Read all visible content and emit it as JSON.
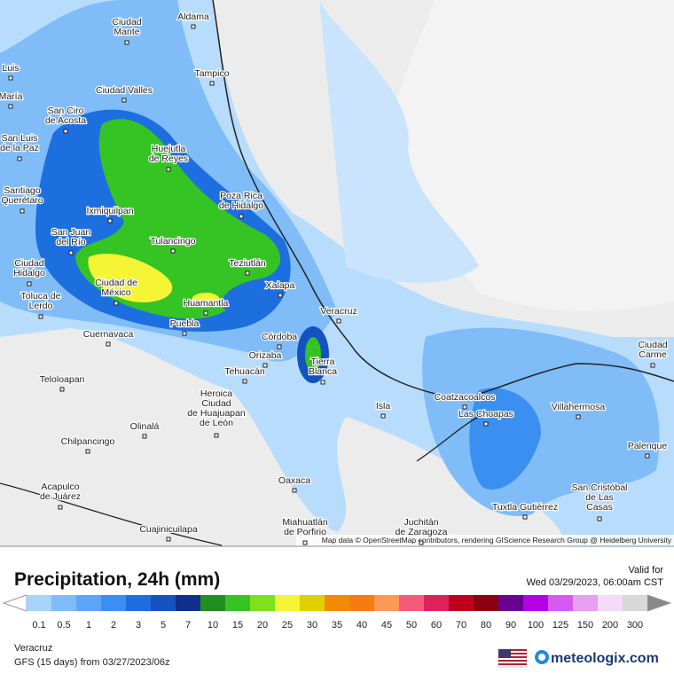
{
  "map": {
    "attribution": "Map data © OpenStreetMap contributors, rendering GIScience Research Group @ Heidelberg University",
    "cities": [
      [
        "Aldama"
      ],
      [
        "Ciudad",
        "Mante"
      ],
      [
        "Tampico"
      ],
      [
        "Ciudad Valles"
      ],
      [
        "Luis"
      ],
      [
        "María"
      ],
      [
        "San Ciro",
        "de Acosta"
      ],
      [
        "San Luis",
        "de la Paz"
      ],
      [
        "Huejutla",
        "de Reyes"
      ],
      [
        "Poza Rica",
        "de Hidalgo"
      ],
      [
        "Santiago",
        "Querétaro"
      ],
      [
        "Ixmiquilpan"
      ],
      [
        "San Juan",
        "del Río"
      ],
      [
        "Tulancingo"
      ],
      [
        "Teziutlán"
      ],
      [
        "Ciudad",
        "Hidalgo"
      ],
      [
        "Toluca de",
        "Lerdo"
      ],
      [
        "Ciudad de",
        "México"
      ],
      [
        "Xalapa"
      ],
      [
        "Huamantla"
      ],
      [
        "Veracruz"
      ],
      [
        "Puebla"
      ],
      [
        "Cuernavaca"
      ],
      [
        "Córdoba"
      ],
      [
        "Orizaba"
      ],
      [
        "Tierra",
        "Blanca"
      ],
      [
        "Tehuacán"
      ],
      [
        "Teloloapan"
      ],
      [
        "Heroica",
        "Ciudad",
        "de Huajuapan",
        "de León"
      ],
      [
        "Isla"
      ],
      [
        "Coatzacoalcos"
      ],
      [
        "Las Choapas"
      ],
      [
        "Villahermosa"
      ],
      [
        "Ciudad",
        "Carme"
      ],
      [
        "Palenque"
      ],
      [
        "Chilpancingo"
      ],
      [
        "Olinalá"
      ],
      [
        "Acapulco",
        "de Juárez"
      ],
      [
        "Oaxaca"
      ],
      [
        "San Cristóbal",
        "de Las",
        "Casas"
      ],
      [
        "Tuxtla Gutiérrez"
      ],
      [
        "Miahuatlán",
        "de Porfirio"
      ],
      [
        "Juchitán",
        "de Zaragoza"
      ],
      [
        "Cuajinicuilapa"
      ]
    ]
  },
  "legend": {
    "title": "Precipitation, 24h (mm)",
    "values": [
      0.1,
      0.5,
      1,
      2,
      3,
      5,
      7,
      10,
      15,
      20,
      25,
      30,
      35,
      40,
      45,
      50,
      60,
      70,
      80,
      90,
      100,
      125,
      150,
      200,
      300
    ],
    "colors": [
      "#a6d4fb",
      "#7fbcf8",
      "#5ea6f5",
      "#3b8ff0",
      "#1d6fe0",
      "#1452c0",
      "#0e2f8c",
      "#1f8f1f",
      "#35c424",
      "#7de21a",
      "#f5f536",
      "#e0d000",
      "#f08a00",
      "#f67b10",
      "#fa9a55",
      "#f55a7a",
      "#e0205a",
      "#c0001a",
      "#8c0010",
      "#6a0090",
      "#b400e6",
      "#d75af0",
      "#e8a0f0",
      "#f4dcf8",
      "#d8d8d8"
    ]
  },
  "valid": {
    "label": "Valid for",
    "time": "Wed 03/29/2023, 06:00am CST"
  },
  "footer": {
    "location": "Veracruz",
    "model": "GFS (15 days) from 03/27/2023/06z",
    "brand": "meteologix.com"
  }
}
